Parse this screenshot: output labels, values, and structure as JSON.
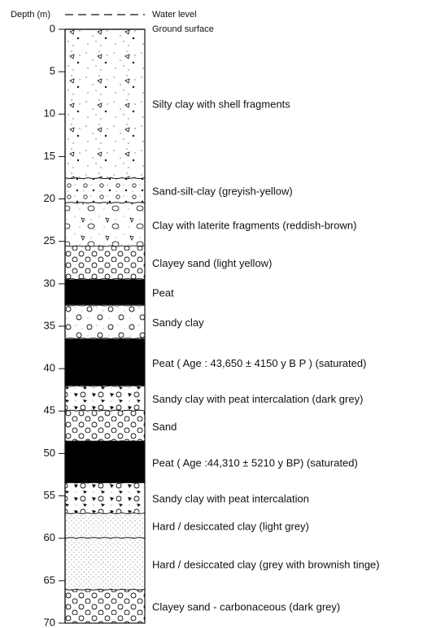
{
  "header": {
    "depth_label": "Depth (m)",
    "water_level": "Water level",
    "ground_surface": "Ground surface"
  },
  "axis": {
    "ylim": [
      0,
      70
    ],
    "yticks": [
      0,
      5,
      10,
      15,
      20,
      25,
      30,
      35,
      40,
      45,
      50,
      55,
      60,
      65,
      70
    ]
  },
  "layers": [
    {
      "top": 0,
      "bottom": 17.5,
      "label": "Silty clay with shell fragments"
    },
    {
      "top": 17.5,
      "bottom": 20.5,
      "label": "Sand-silt-clay (greyish-yellow)"
    },
    {
      "top": 20.5,
      "bottom": 25.5,
      "label": "Clay with laterite fragments (reddish-brown)"
    },
    {
      "top": 25.5,
      "bottom": 29.5,
      "label": "Clayey sand (light yellow)"
    },
    {
      "top": 29.5,
      "bottom": 32.5,
      "label": "Peat"
    },
    {
      "top": 32.5,
      "bottom": 36.5,
      "label": "Sandy clay"
    },
    {
      "top": 36.5,
      "bottom": 42,
      "label": "Peat ( Age : 43,650 ± 4150 y  B P ) (saturated)"
    },
    {
      "top": 42,
      "bottom": 45,
      "label": "Sandy clay with peat  intercalation (dark grey)"
    },
    {
      "top": 45,
      "bottom": 48.5,
      "label": "Sand"
    },
    {
      "top": 48.5,
      "bottom": 53.5,
      "label": "Peat ( Age :44,310 ± 5210 y  BP) (saturated)"
    },
    {
      "top": 53.5,
      "bottom": 57,
      "label": "Sandy clay with peat intercalation"
    },
    {
      "top": 57,
      "bottom": 60,
      "label": "Hard / desiccated clay (light grey)"
    },
    {
      "top": 60,
      "bottom": 66,
      "label": "Hard / desiccated clay (grey with brownish tinge)"
    },
    {
      "top": 66,
      "bottom": 70,
      "label": "Clayey sand - carbonaceous (dark grey)"
    }
  ]
}
